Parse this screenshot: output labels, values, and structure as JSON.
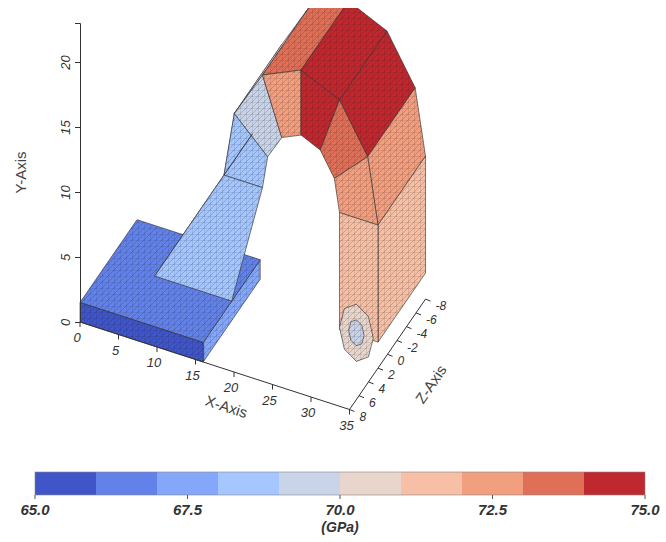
{
  "chart_data": {
    "type": "mesh3d",
    "xlabel": "X-Axis",
    "ylabel": "Y-Axis",
    "zlabel": "Z-Axis",
    "xlim": [
      0,
      35
    ],
    "xticks": [
      0,
      5,
      10,
      15,
      20,
      25,
      30,
      35
    ],
    "ylim": [
      0,
      23
    ],
    "yticks": [
      0,
      5,
      10,
      15,
      20
    ],
    "zlim": [
      -8,
      8
    ],
    "zticks": [
      8,
      6,
      4,
      2,
      0,
      -2,
      -4,
      -6,
      -8
    ],
    "colorbar": {
      "range": [
        65,
        75
      ],
      "ticks": [
        {
          "value": 65,
          "label": "65.0"
        },
        67.5,
        {
          "value": 70,
          "label": "70.0"
        },
        72.5,
        {
          "value": 75,
          "label": "75.0"
        }
      ],
      "title": "(GPa)",
      "colors": [
        "#4055c8",
        "#6282ea",
        "#84a7fc",
        "#a5c6fe",
        "#c9d4e8",
        "#e8d6cc",
        "#f6bfa6",
        "#f29f80",
        "#e06f57",
        "#c0282f"
      ]
    },
    "faces": [
      {
        "x": [
          15,
          16.34,
          16.34,
          15
        ],
        "y": [
          11,
          16,
          16,
          11
        ],
        "z": [
          2,
          2,
          -8,
          -8
        ],
        "value": 68.5
      },
      {
        "x": [
          16.34,
          20,
          20,
          16.34
        ],
        "y": [
          16,
          19.66,
          19.66,
          16
        ],
        "z": [
          2,
          2,
          -8,
          -8
        ],
        "value": 70
      },
      {
        "x": [
          20,
          25,
          25,
          20
        ],
        "y": [
          19.66,
          21,
          21,
          19.66
        ],
        "z": [
          2,
          2,
          -8,
          -8
        ],
        "value": 73
      },
      {
        "x": [
          25,
          30,
          30,
          25
        ],
        "y": [
          21,
          19.66,
          19.66,
          21
        ],
        "z": [
          2,
          2,
          -8,
          -8
        ],
        "value": 74.5
      },
      {
        "x": [
          30,
          33.66,
          33.66,
          30
        ],
        "y": [
          19.66,
          16,
          16,
          19.66
        ],
        "z": [
          2,
          2,
          -8,
          -8
        ],
        "value": 74
      },
      {
        "x": [
          33.66,
          35,
          35,
          33.66
        ],
        "y": [
          16,
          11,
          11,
          16
        ],
        "z": [
          2,
          2,
          -8,
          -8
        ],
        "value": 72.5
      },
      {
        "x": [
          35,
          35,
          35,
          35
        ],
        "y": [
          11,
          2,
          2,
          11
        ],
        "z": [
          2,
          2,
          -8,
          -8
        ],
        "value": 71
      },
      {
        "x": [
          15,
          16.34,
          20.67,
          20
        ],
        "y": [
          11,
          16,
          13.5,
          11
        ],
        "z": [
          2,
          2,
          2,
          2
        ],
        "value": 68
      },
      {
        "x": [
          16.34,
          20,
          22.5,
          20.67
        ],
        "y": [
          16,
          19.66,
          15.33,
          13.5
        ],
        "z": [
          2,
          2,
          2,
          2
        ],
        "value": 69.5
      },
      {
        "x": [
          20,
          25,
          25,
          22.5
        ],
        "y": [
          19.66,
          21,
          16,
          15.33
        ],
        "z": [
          2,
          2,
          2,
          2
        ],
        "value": 72.5
      },
      {
        "x": [
          25,
          30,
          27.5,
          25
        ],
        "y": [
          21,
          19.66,
          15.33,
          16
        ],
        "z": [
          2,
          2,
          2,
          2
        ],
        "value": 74
      },
      {
        "x": [
          30,
          33.66,
          29.33,
          27.5
        ],
        "y": [
          19.66,
          16,
          13.5,
          15.33
        ],
        "z": [
          2,
          2,
          2,
          2
        ],
        "value": 73.5
      },
      {
        "x": [
          33.66,
          35,
          30,
          29.33
        ],
        "y": [
          16,
          11,
          11,
          13.5
        ],
        "z": [
          2,
          2,
          2,
          2
        ],
        "value": 72
      },
      {
        "x": [
          35,
          35,
          30,
          30
        ],
        "y": [
          11,
          2,
          2,
          11
        ],
        "z": [
          2,
          2,
          2,
          2
        ],
        "value": 71
      },
      {
        "x": [
          16,
          16,
          16,
          16
        ],
        "y": [
          0,
          0,
          1.5,
          1.5
        ],
        "z": [
          8,
          -4,
          -4,
          8
        ],
        "value": 67
      },
      {
        "x": [
          0,
          16,
          16,
          0
        ],
        "y": [
          1.5,
          1.5,
          1.5,
          1.5
        ],
        "z": [
          8,
          8,
          -4,
          -4
        ],
        "value": 66
      },
      {
        "x": [
          0,
          16,
          16,
          0
        ],
        "y": [
          0,
          0,
          1.5,
          1.5
        ],
        "z": [
          8,
          8,
          8,
          8
        ],
        "value": 65.5
      },
      {
        "x": [
          6,
          15,
          15,
          6
        ],
        "y": [
          1.5,
          11,
          11,
          1.5
        ],
        "z": [
          2,
          2,
          -4,
          -4
        ],
        "value": 67.5
      },
      {
        "x": [
          6,
          16,
          20,
          15
        ],
        "y": [
          1.5,
          1.5,
          11,
          11
        ],
        "z": [
          2,
          2,
          2,
          2
        ],
        "value": 68
      },
      {
        "x": [
          34.7,
          34.06,
          32.5,
          30.94,
          30.3,
          30.94,
          32.5,
          34.06
        ],
        "y": [
          2.5,
          4.06,
          4.7,
          4.06,
          2.5,
          0.94,
          0.3,
          0.94
        ],
        "z": [
          2.5,
          2.5,
          2.5,
          2.5,
          2.5,
          2.5,
          2.5,
          2.5
        ],
        "value": 70.5
      },
      {
        "x": [
          33.5,
          33.21,
          32.5,
          31.79,
          31.5,
          31.79,
          32.5,
          33.21
        ],
        "y": [
          2.5,
          3.21,
          3.5,
          3.21,
          2.5,
          1.79,
          1.5,
          1.79
        ],
        "z": [
          2.5,
          2.5,
          2.5,
          2.5,
          2.5,
          2.5,
          2.5,
          2.5
        ],
        "value": 69.5
      }
    ]
  }
}
